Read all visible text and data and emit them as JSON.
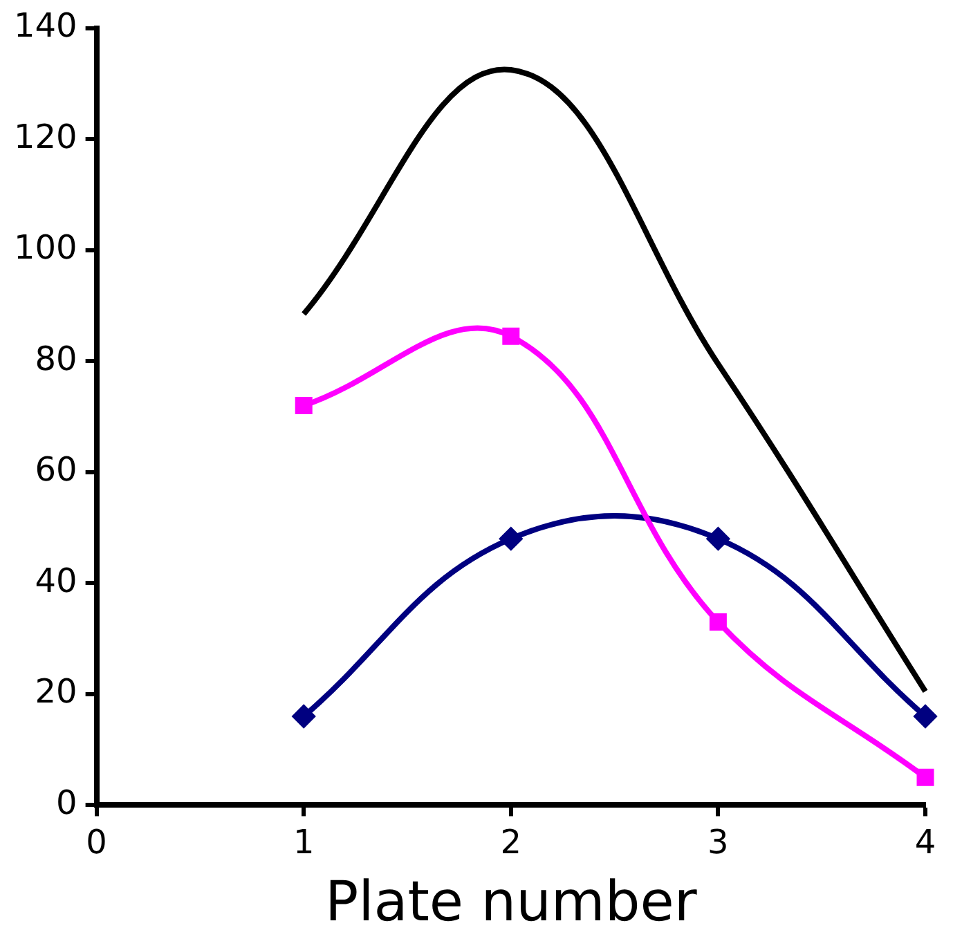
{
  "chart_data": {
    "type": "line",
    "xlabel": "Plate number",
    "x": [
      1,
      2,
      3,
      4
    ],
    "series": [
      {
        "color": "#000000",
        "values": [
          88.5,
          132.5,
          79.5,
          20.5
        ],
        "marker": "none"
      },
      {
        "color": "#ff00ff",
        "values": [
          72,
          84.5,
          33,
          5
        ],
        "marker": "square"
      },
      {
        "color": "#000080",
        "values": [
          16,
          48,
          48,
          16
        ],
        "marker": "diamond"
      }
    ],
    "xlim": [
      0,
      4
    ],
    "xticks": [
      0,
      1,
      2,
      3,
      4
    ],
    "ylim": [
      0,
      140
    ],
    "yticks": [
      0,
      20,
      40,
      60,
      80,
      100,
      120,
      140
    ],
    "grid": false,
    "legend": false,
    "line_style": "solid"
  }
}
